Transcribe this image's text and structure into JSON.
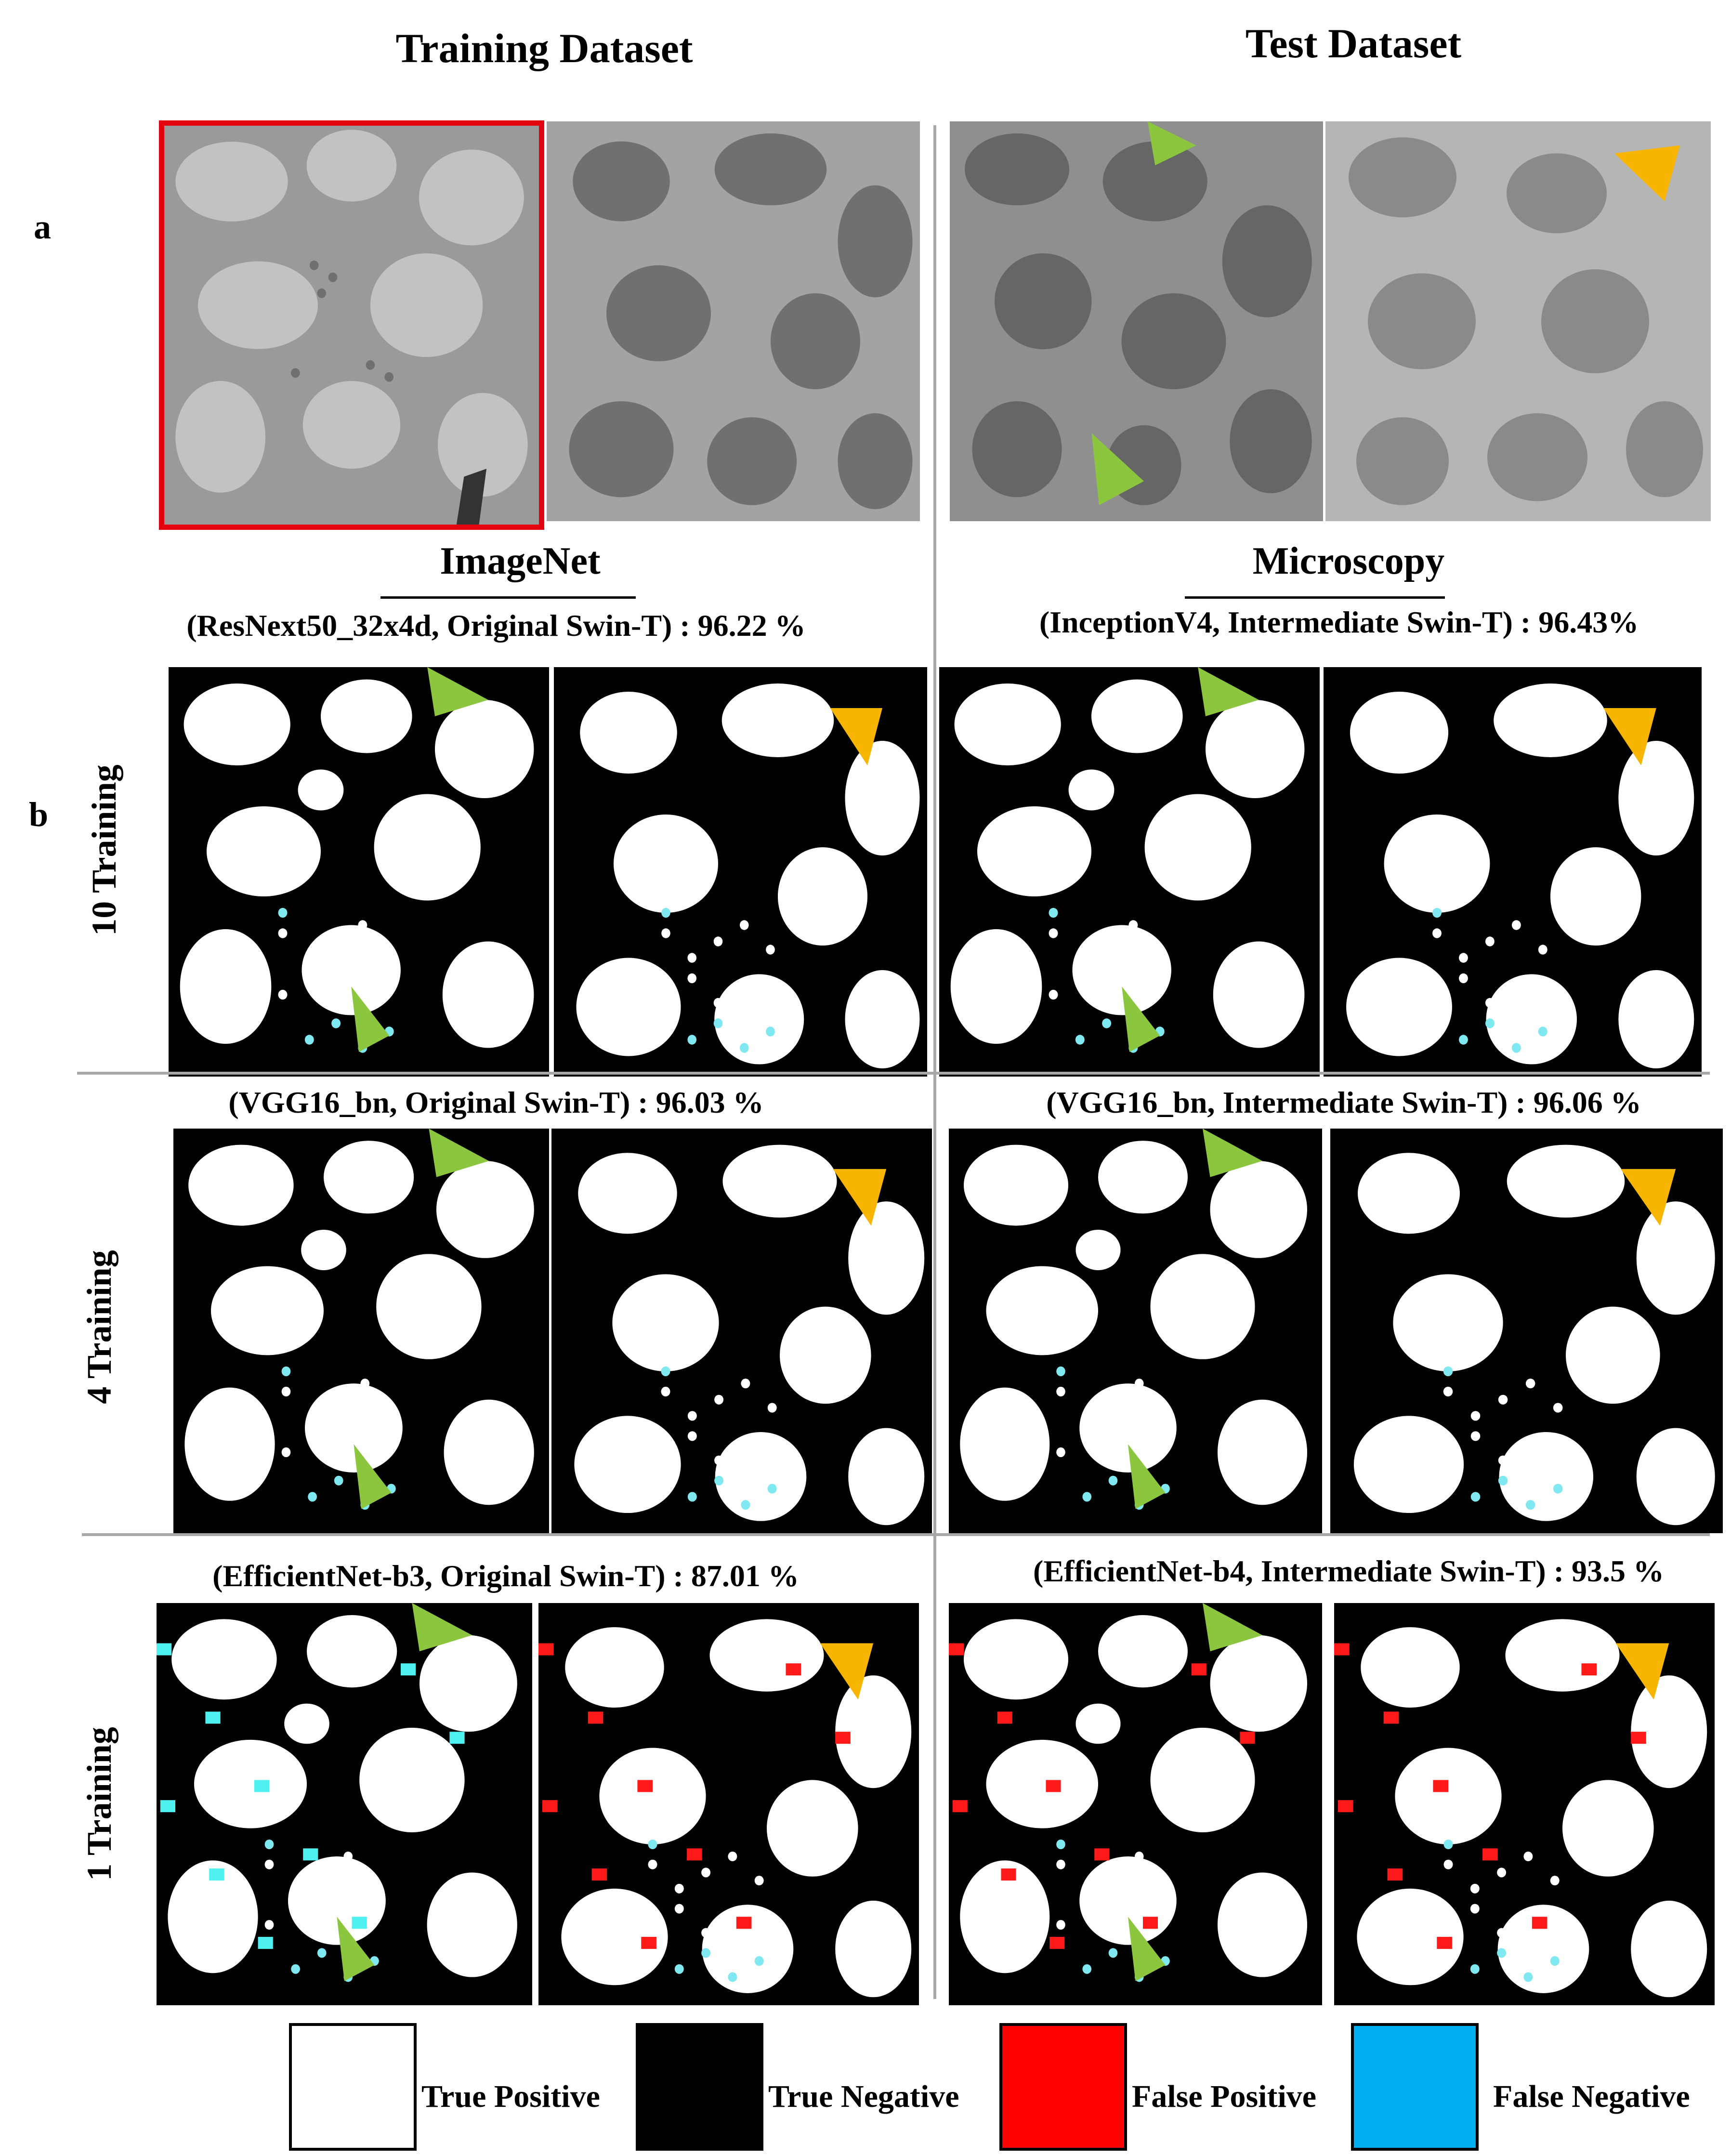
{
  "headers": {
    "training": "Training Dataset",
    "test": "Test Dataset"
  },
  "panel_labels": {
    "a": "a",
    "b": "b"
  },
  "subheaders": {
    "imagenet": "ImageNet",
    "microscopy": "Microscopy"
  },
  "rows": [
    {
      "label": "10 Training",
      "left_caption": "(ResNext50_32x4d, Original Swin-T) : 96.22 %",
      "right_caption": "(InceptionV4, Intermediate Swin-T) : 96.43%"
    },
    {
      "label": "4 Training",
      "left_caption": "(VGG16_bn, Original Swin-T) : 96.03 %",
      "right_caption": "(VGG16_bn, Intermediate Swin-T) : 96.06 %"
    },
    {
      "label": "1 Training",
      "left_caption": "(EfficientNet-b3, Original Swin-T) : 87.01 %",
      "right_caption": "(EfficientNet-b4, Intermediate Swin-T) : 93.5 %"
    }
  ],
  "legend": [
    {
      "label": "True Positive",
      "color": "#ffffff"
    },
    {
      "label": "True Negative",
      "color": "#000000"
    },
    {
      "label": "False Positive",
      "color": "#ff0000"
    },
    {
      "label": "False Negative",
      "color": "#00b0f0"
    }
  ],
  "colors": {
    "highlight_border": "#e3000f",
    "arrow_green": "#8cc63f",
    "arrow_orange": "#f7b500",
    "divider": "#a8a8a8"
  }
}
